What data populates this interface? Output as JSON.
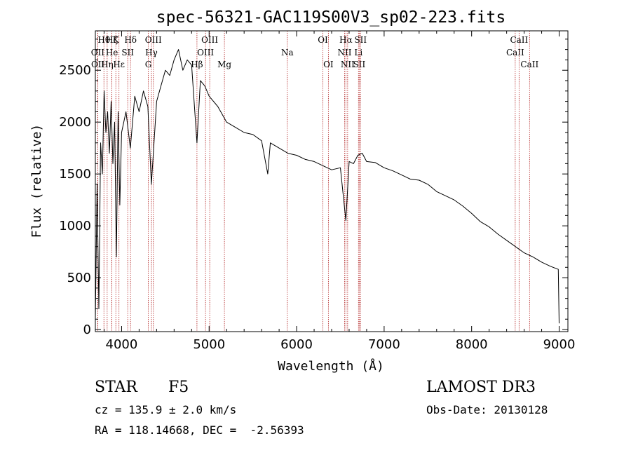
{
  "chart_data": {
    "type": "line",
    "title": "spec-56321-GAC119S00V3_sp02-223.fits",
    "xlabel": "Wavelength (Å)",
    "ylabel": "Flux (relative)",
    "xlim": [
      3700,
      9100
    ],
    "ylim": [
      -20,
      2880
    ],
    "xticks": [
      4000,
      5000,
      6000,
      7000,
      8000,
      9000
    ],
    "yticks": [
      0,
      500,
      1000,
      1500,
      2000,
      2500
    ],
    "xtick_labels": [
      "4000",
      "5000",
      "6000",
      "7000",
      "8000",
      "9000"
    ],
    "ytick_labels": [
      "0",
      "500",
      "1000",
      "1500",
      "2000",
      "2500"
    ],
    "series": [
      {
        "name": "Flux",
        "x": [
          3700,
          3720,
          3740,
          3760,
          3780,
          3800,
          3820,
          3840,
          3860,
          3880,
          3900,
          3920,
          3940,
          3960,
          3980,
          4000,
          4050,
          4100,
          4150,
          4200,
          4250,
          4300,
          4340,
          4400,
          4450,
          4500,
          4550,
          4600,
          4650,
          4700,
          4750,
          4800,
          4861,
          4900,
          4950,
          5000,
          5100,
          5200,
          5300,
          5400,
          5500,
          5600,
          5670,
          5700,
          5800,
          5900,
          6000,
          6100,
          6200,
          6300,
          6400,
          6500,
          6563,
          6600,
          6650,
          6700,
          6750,
          6800,
          6900,
          7000,
          7100,
          7200,
          7300,
          7400,
          7500,
          7600,
          7700,
          7800,
          7900,
          8000,
          8100,
          8200,
          8300,
          8400,
          8500,
          8600,
          8700,
          8800,
          8900,
          8990,
          9000
        ],
        "y": [
          100,
          1400,
          200,
          1800,
          1500,
          2300,
          1900,
          2100,
          1700,
          2200,
          1600,
          2000,
          700,
          2100,
          1200,
          1900,
          2100,
          1750,
          2250,
          2100,
          2300,
          2150,
          1400,
          2200,
          2350,
          2500,
          2450,
          2600,
          2700,
          2500,
          2600,
          2550,
          1800,
          2400,
          2350,
          2250,
          2150,
          2000,
          1950,
          1900,
          1880,
          1820,
          1500,
          1800,
          1750,
          1700,
          1680,
          1640,
          1620,
          1580,
          1540,
          1560,
          1050,
          1620,
          1600,
          1680,
          1700,
          1620,
          1610,
          1560,
          1530,
          1490,
          1450,
          1440,
          1400,
          1330,
          1290,
          1250,
          1190,
          1120,
          1040,
          990,
          920,
          860,
          800,
          740,
          700,
          650,
          610,
          580,
          60
        ]
      }
    ],
    "lines": [
      {
        "label": "Hθ",
        "x": 3798,
        "row": 0
      },
      {
        "label": "OII",
        "x": 3727,
        "row": 1
      },
      {
        "label": "OII",
        "x": 3729,
        "row": 2
      },
      {
        "label": "Hη",
        "x": 3835,
        "row": 2
      },
      {
        "label": "He",
        "x": 3889,
        "row": 1
      },
      {
        "label": "Hζ",
        "x": 3889,
        "row": 0
      },
      {
        "label": "K",
        "x": 3934,
        "row": 0
      },
      {
        "label": "Hε",
        "x": 3970,
        "row": 2
      },
      {
        "label": "SII",
        "x": 4070,
        "row": 1
      },
      {
        "label": "Hδ",
        "x": 4102,
        "row": 0
      },
      {
        "label": "G",
        "x": 4305,
        "row": 2
      },
      {
        "label": "Hγ",
        "x": 4341,
        "row": 1
      },
      {
        "label": "OIII",
        "x": 4363,
        "row": 0
      },
      {
        "label": "Hβ",
        "x": 4861,
        "row": 2
      },
      {
        "label": "OIII",
        "x": 4959,
        "row": 1
      },
      {
        "label": "OIII",
        "x": 5007,
        "row": 0
      },
      {
        "label": "Mg",
        "x": 5175,
        "row": 2
      },
      {
        "label": "Na",
        "x": 5894,
        "row": 1
      },
      {
        "label": "OI",
        "x": 6300,
        "row": 0
      },
      {
        "label": "OI",
        "x": 6363,
        "row": 2
      },
      {
        "label": "NII",
        "x": 6548,
        "row": 1
      },
      {
        "label": "Hα",
        "x": 6563,
        "row": 0
      },
      {
        "label": "NII",
        "x": 6583,
        "row": 2
      },
      {
        "label": "Li",
        "x": 6707,
        "row": 1
      },
      {
        "label": "SII",
        "x": 6716,
        "row": 2
      },
      {
        "label": "SII",
        "x": 6731,
        "row": 0
      },
      {
        "label": "CaII",
        "x": 8498,
        "row": 1
      },
      {
        "label": "CaII",
        "x": 8542,
        "row": 0
      },
      {
        "label": "CaII",
        "x": 8662,
        "row": 2
      }
    ]
  },
  "info": {
    "object_class": "STAR",
    "subclass": "F5",
    "survey": "LAMOST DR3",
    "redshift": "cz = 135.9 ± 2.0 km/s",
    "obs_date": "Obs-Date: 20130128",
    "coords": "RA = 118.14668, DEC =  -2.56393"
  },
  "colors": {
    "line_marker": "#b22222",
    "spectrum": "#000000",
    "axes": "#000000"
  }
}
